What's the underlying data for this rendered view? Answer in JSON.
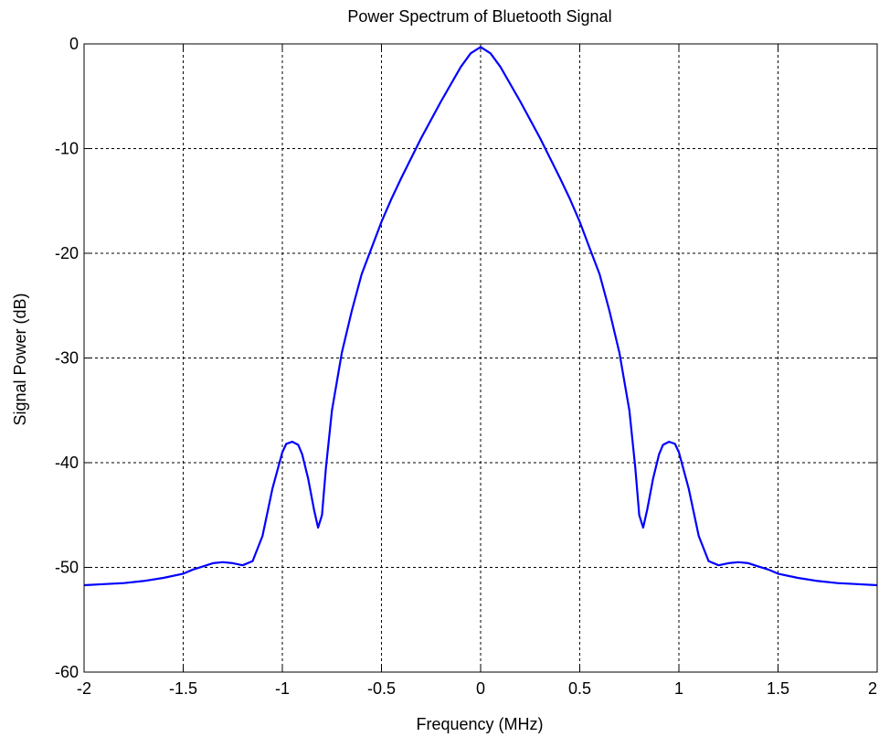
{
  "chart_data": {
    "type": "line",
    "title": "Power Spectrum of Bluetooth Signal",
    "xlabel": "Frequency (MHz)",
    "ylabel": "Signal Power (dB)",
    "xlim": [
      -2,
      2
    ],
    "ylim": [
      -60,
      0
    ],
    "xticks": [
      -2,
      -1.5,
      -1,
      -0.5,
      0,
      0.5,
      1,
      1.5,
      2
    ],
    "xtick_labels": [
      "-2",
      "-1.5",
      "-1",
      "-0.5",
      "0",
      "0.5",
      "1",
      "1.5",
      "2"
    ],
    "yticks": [
      0,
      -10,
      -20,
      -30,
      -40,
      -50,
      -60
    ],
    "ytick_labels": [
      "0",
      "-10",
      "-20",
      "-30",
      "-40",
      "-50",
      "-60"
    ],
    "grid": true,
    "line_color": "#0000ff",
    "series": [
      {
        "x": [
          -2,
          -1.9,
          -1.8,
          -1.7,
          -1.6,
          -1.5,
          -1.45,
          -1.4,
          -1.35,
          -1.3,
          -1.25,
          -1.2,
          -1.15,
          -1.1,
          -1.05,
          -1.0,
          -0.98,
          -0.95,
          -0.92,
          -0.9,
          -0.87,
          -0.84,
          -0.82,
          -0.8,
          -0.78,
          -0.75,
          -0.7,
          -0.65,
          -0.6,
          -0.55,
          -0.5,
          -0.45,
          -0.4,
          -0.3,
          -0.2,
          -0.1,
          -0.05,
          0,
          0.05,
          0.1,
          0.2,
          0.3,
          0.4,
          0.45,
          0.5,
          0.55,
          0.6,
          0.65,
          0.7,
          0.75,
          0.78,
          0.8,
          0.82,
          0.84,
          0.87,
          0.9,
          0.92,
          0.95,
          0.98,
          1.0,
          1.05,
          1.1,
          1.15,
          1.2,
          1.25,
          1.3,
          1.35,
          1.4,
          1.45,
          1.5,
          1.6,
          1.7,
          1.8,
          1.9,
          2
        ],
        "y": [
          -51.7,
          -51.6,
          -51.5,
          -51.3,
          -51.0,
          -50.6,
          -50.2,
          -49.9,
          -49.6,
          -49.5,
          -49.6,
          -49.8,
          -49.4,
          -47.0,
          -42.5,
          -39.0,
          -38.2,
          -38.0,
          -38.3,
          -39.2,
          -41.5,
          -44.5,
          -46.2,
          -45.0,
          -40.5,
          -35.0,
          -29.5,
          -25.5,
          -22.0,
          -19.5,
          -17.0,
          -14.8,
          -12.8,
          -9.0,
          -5.5,
          -2.2,
          -0.9,
          -0.3,
          -0.9,
          -2.2,
          -5.5,
          -9.0,
          -12.8,
          -14.8,
          -17.0,
          -19.5,
          -22.0,
          -25.5,
          -29.5,
          -35.0,
          -40.5,
          -45.0,
          -46.2,
          -44.5,
          -41.5,
          -39.2,
          -38.3,
          -38.0,
          -38.2,
          -39.0,
          -42.5,
          -47.0,
          -49.4,
          -49.8,
          -49.6,
          -49.5,
          -49.6,
          -49.9,
          -50.2,
          -50.6,
          -51.0,
          -51.3,
          -51.5,
          -51.6,
          -51.7
        ]
      }
    ]
  }
}
